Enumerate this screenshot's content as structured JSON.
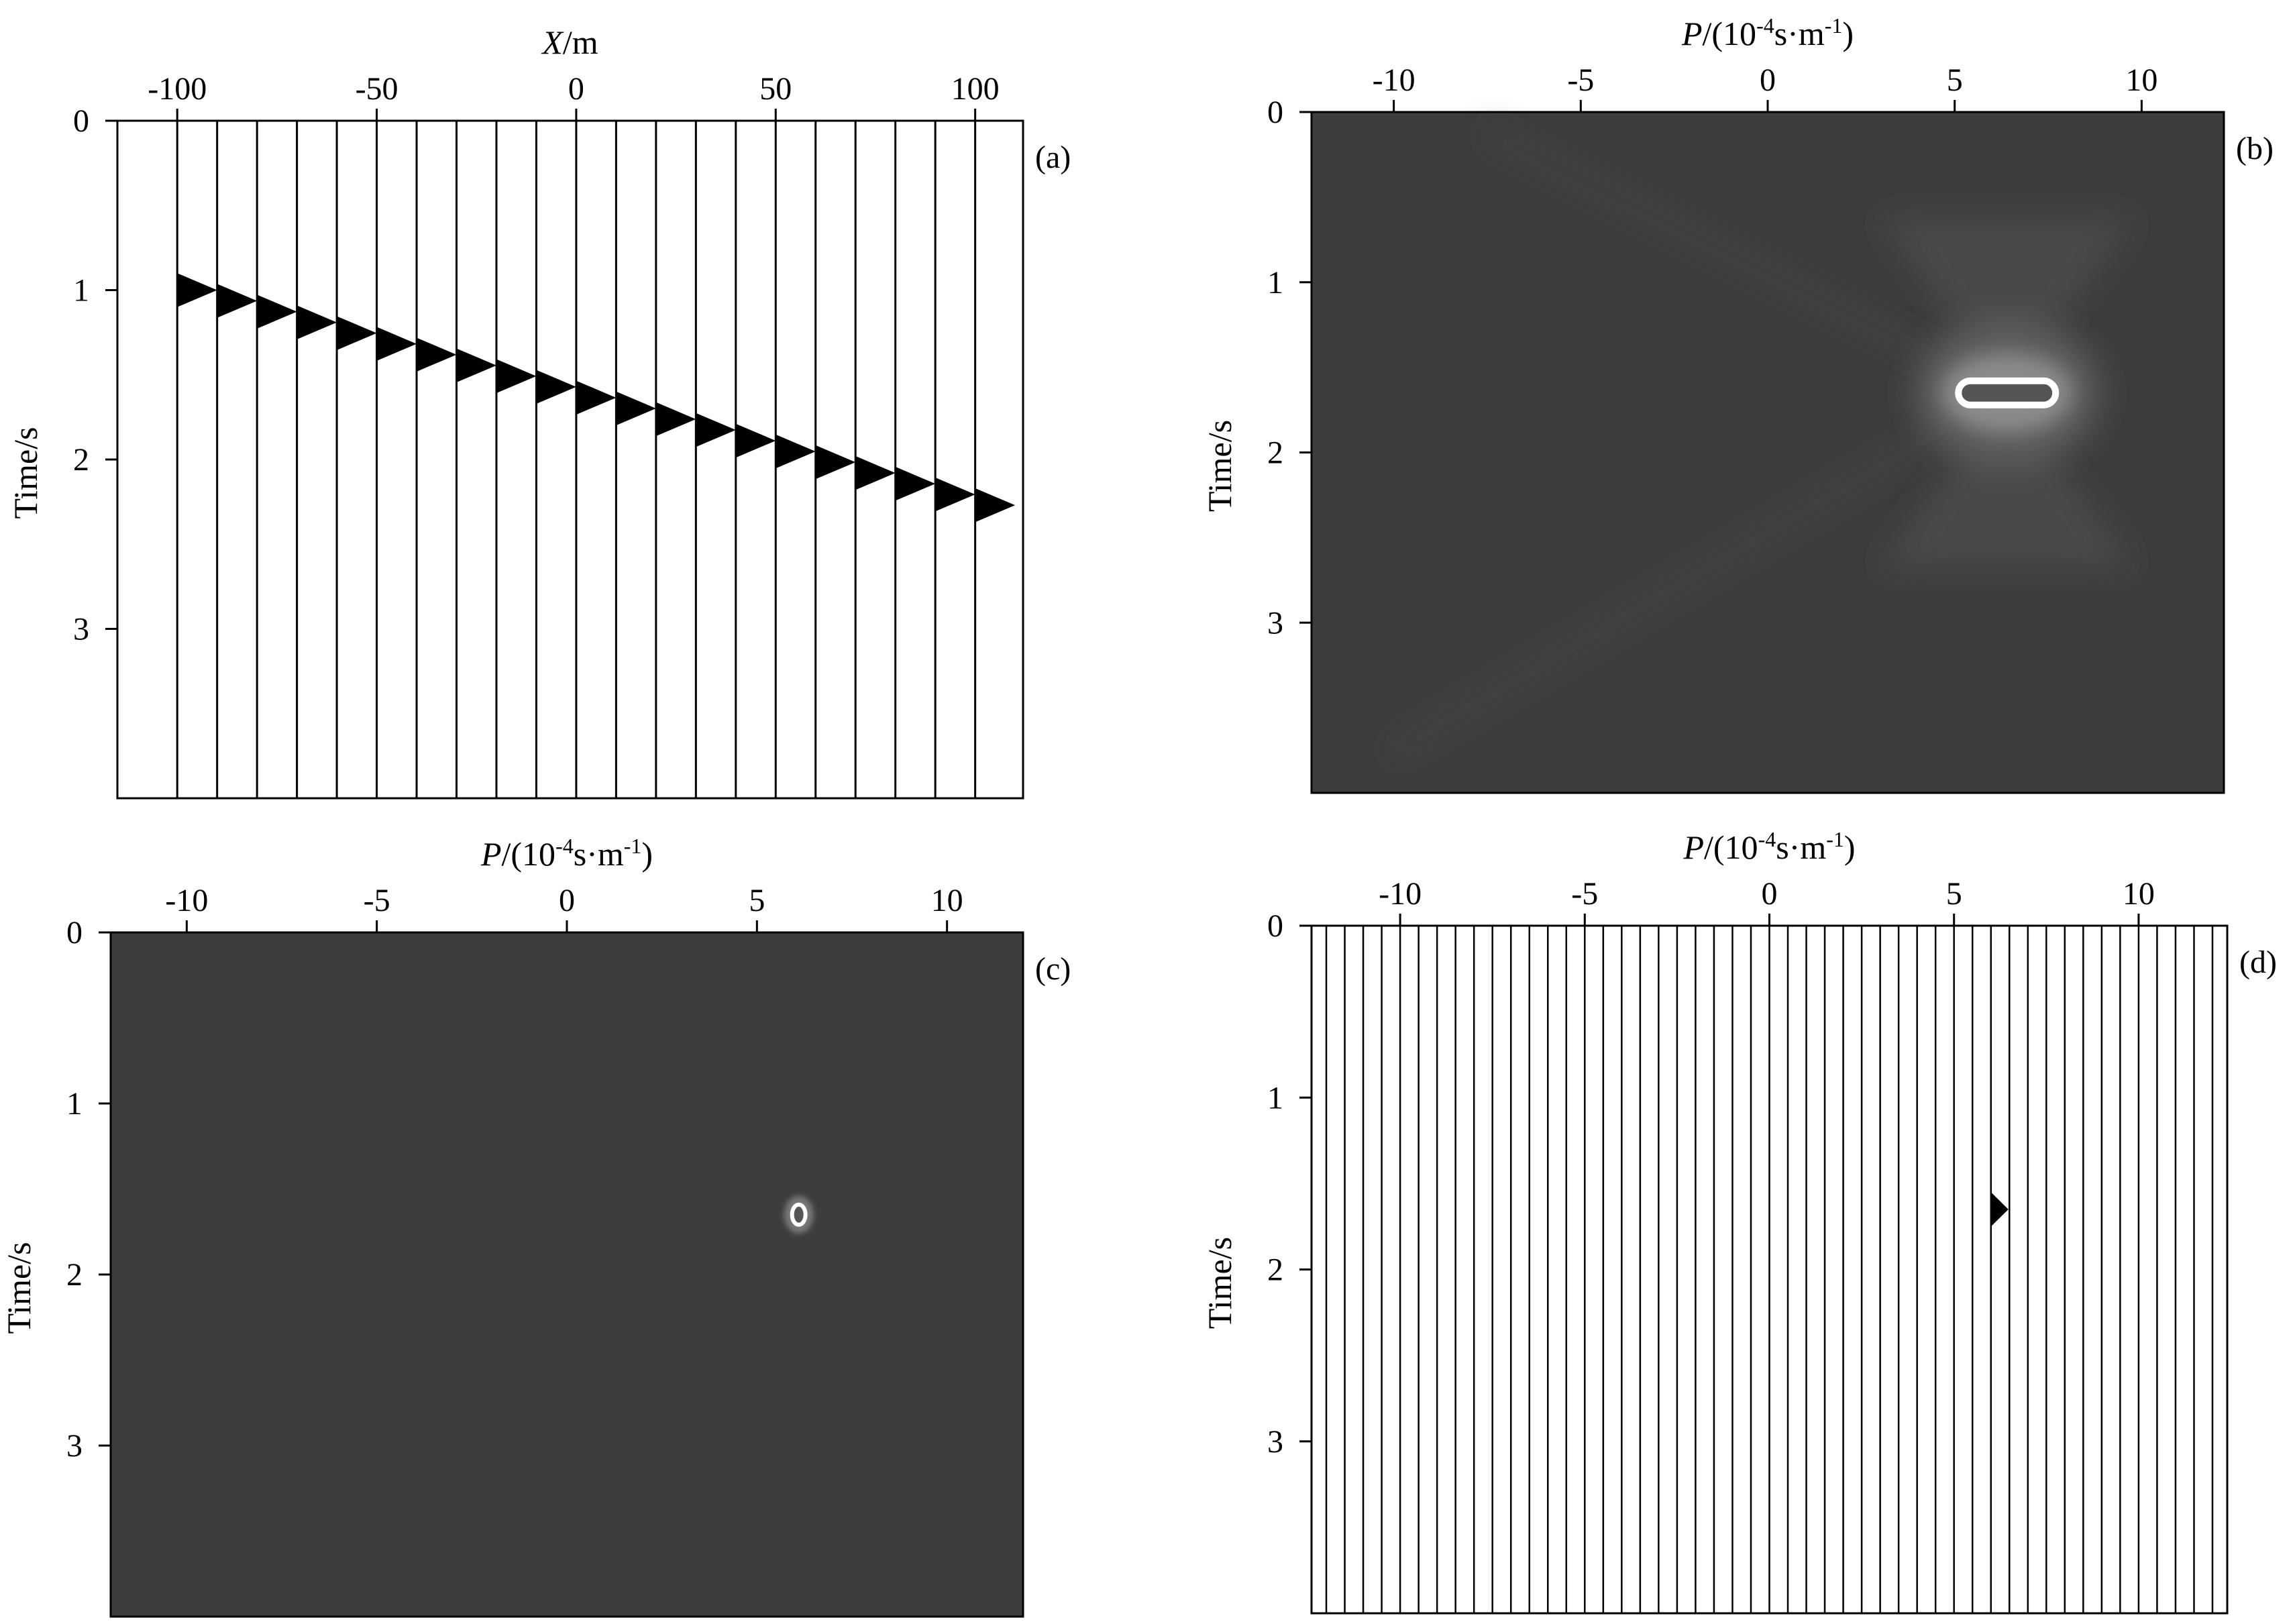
{
  "colors": {
    "image_bg": "#3d3d3d",
    "ink": "#000000",
    "paper": "#ffffff",
    "highlight": "#ffffff"
  },
  "chart_data": [
    {
      "id": "a",
      "type": "wiggle",
      "panel_label": "(a)",
      "xlabel": "X/m",
      "ylabel": "Time/s",
      "x_ticks": [
        "-100",
        "-50",
        "0",
        "50",
        "100"
      ],
      "x_tick_values": [
        -100,
        -50,
        0,
        50,
        100
      ],
      "y_ticks": [
        "0",
        "1",
        "2",
        "3"
      ],
      "y_tick_values": [
        0,
        1,
        2,
        3
      ],
      "xlim": [
        -115,
        112
      ],
      "ylim": [
        0,
        4
      ],
      "traces_x": [
        -100,
        -90,
        -80,
        -70,
        -60,
        -50,
        -40,
        -30,
        -20,
        -10,
        0,
        10,
        20,
        30,
        40,
        50,
        60,
        70,
        80,
        90,
        100
      ],
      "event": {
        "t0": 1.0,
        "t_end": 2.27,
        "width": 0.2
      }
    },
    {
      "id": "b",
      "type": "heatmap",
      "panel_label": "(b)",
      "xlabel": "P/(10-4s·m-1)",
      "ylabel": "Time/s",
      "x_ticks": [
        "-10",
        "-5",
        "0",
        "5",
        "10"
      ],
      "x_tick_values": [
        -10,
        -5,
        0,
        5,
        10
      ],
      "y_ticks": [
        "0",
        "1",
        "2",
        "3"
      ],
      "y_tick_values": [
        0,
        1,
        2,
        3
      ],
      "xlim": [
        -12.2,
        12.2
      ],
      "ylim": [
        0,
        4
      ],
      "focus": {
        "p": 6.4,
        "t": 1.65,
        "half_width_p": 1.3
      }
    },
    {
      "id": "c",
      "type": "heatmap",
      "panel_label": "(c)",
      "xlabel": "P/(10-4s·m-1)",
      "ylabel": "Time/s",
      "x_ticks": [
        "-10",
        "-5",
        "0",
        "5",
        "10"
      ],
      "x_tick_values": [
        -10,
        -5,
        0,
        5,
        10
      ],
      "y_ticks": [
        "0",
        "1",
        "2",
        "3"
      ],
      "y_tick_values": [
        0,
        1,
        2,
        3
      ],
      "xlim": [
        -12,
        12
      ],
      "ylim": [
        0,
        4
      ],
      "focus": {
        "p": 6.1,
        "t": 1.65
      }
    },
    {
      "id": "d",
      "type": "wiggle",
      "panel_label": "(d)",
      "xlabel": "P/(10-4s·m-1)",
      "ylabel": "Time/s",
      "x_ticks": [
        "-10",
        "-5",
        "0",
        "5",
        "10"
      ],
      "x_tick_values": [
        -10,
        -5,
        0,
        5,
        10
      ],
      "y_ticks": [
        "0",
        "1",
        "2",
        "3"
      ],
      "y_tick_values": [
        0,
        1,
        2,
        3
      ],
      "xlim": [
        -12.4,
        12.4
      ],
      "ylim": [
        0,
        4
      ],
      "trace_spacing": 0.5,
      "event": {
        "p": 6.1,
        "t": 1.65,
        "width": 0.2
      }
    }
  ]
}
